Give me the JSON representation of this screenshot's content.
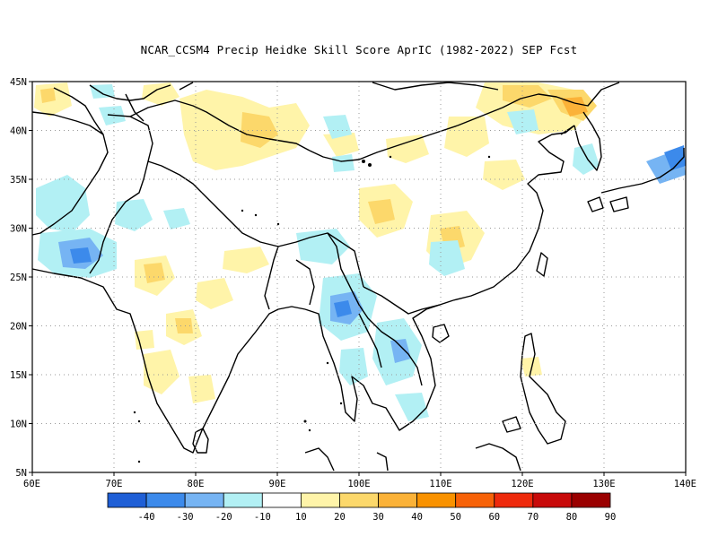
{
  "title": "NCAR_CCSM4 Precip Heidke Skill Score AprIC (1982-2022) SEP Fcst",
  "map": {
    "lat_labels": [
      "45N",
      "40N",
      "35N",
      "30N",
      "25N",
      "20N",
      "15N",
      "10N",
      "5N"
    ],
    "lon_labels": [
      "60E",
      "70E",
      "80E",
      "90E",
      "100E",
      "110E",
      "120E",
      "130E",
      "140E"
    ]
  },
  "colorbar": {
    "colors": [
      "#1f5fd6",
      "#3c8aeb",
      "#76b4f3",
      "#b2f0f4",
      "#ffffff",
      "#fff4a9",
      "#fcd86b",
      "#fbb238",
      "#f99200",
      "#f76208",
      "#ee2a0c",
      "#c80a0a",
      "#9a0000"
    ],
    "labels": [
      "-40",
      "-30",
      "-20",
      "-10",
      "10",
      "20",
      "30",
      "40",
      "50",
      "60",
      "70",
      "80",
      "90"
    ]
  }
}
